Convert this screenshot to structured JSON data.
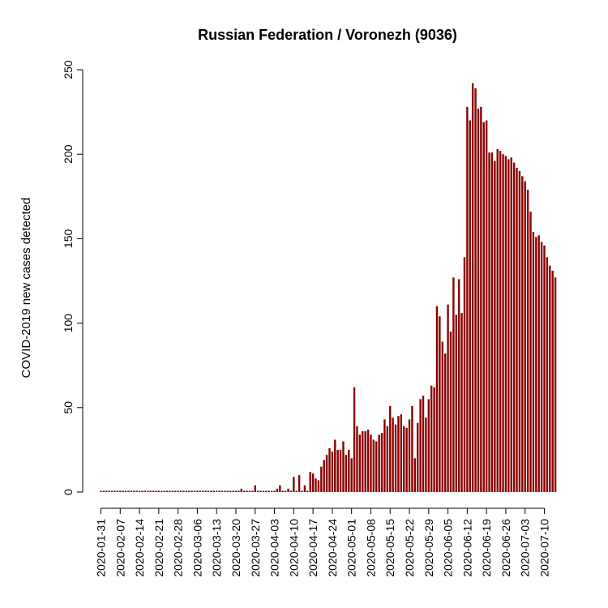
{
  "chart_data": {
    "type": "bar",
    "title": "Russian Federation / Voronezh (9036)",
    "xlabel": "",
    "ylabel": "COVID-2019 new cases detected",
    "ylim": [
      0,
      250
    ],
    "y_ticks": [
      0,
      50,
      100,
      150,
      200,
      250
    ],
    "x_start": "2020-01-31",
    "x_tick_labels": [
      "2020-01-31",
      "2020-02-07",
      "2020-02-14",
      "2020-02-21",
      "2020-02-28",
      "2020-03-06",
      "2020-03-13",
      "2020-03-20",
      "2020-03-27",
      "2020-04-03",
      "2020-04-10",
      "2020-04-17",
      "2020-04-24",
      "2020-05-01",
      "2020-05-08",
      "2020-05-15",
      "2020-05-22",
      "2020-05-29",
      "2020-06-05",
      "2020-06-12",
      "2020-06-19",
      "2020-06-26",
      "2020-07-03",
      "2020-07-10"
    ],
    "bar_color": "#8b0000",
    "values": [
      0,
      0,
      0,
      0,
      0,
      0,
      0,
      0,
      0,
      0,
      0,
      0,
      0,
      0,
      0,
      0,
      0,
      0,
      0,
      0,
      0,
      0,
      0,
      0,
      0,
      0,
      0,
      0,
      0,
      0,
      0,
      0,
      0,
      0,
      0,
      0,
      0,
      0,
      0,
      0,
      0,
      0,
      0,
      0,
      0,
      0,
      0,
      0,
      0,
      0,
      0,
      2,
      0,
      0,
      0,
      0,
      4,
      0,
      0,
      0,
      0,
      0,
      0,
      0,
      2,
      4,
      0,
      0,
      2,
      0,
      9,
      0,
      10,
      0,
      4,
      0,
      12,
      11,
      8,
      7,
      15,
      19,
      22,
      26,
      24,
      31,
      25,
      25,
      30,
      22,
      25,
      20,
      62,
      39,
      34,
      36,
      36,
      37,
      34,
      31,
      30,
      34,
      35,
      43,
      39,
      51,
      44,
      40,
      45,
      46,
      39,
      38,
      43,
      51,
      20,
      41,
      55,
      57,
      44,
      55,
      63,
      62,
      110,
      104,
      89,
      82,
      111,
      95,
      127,
      105,
      126,
      106,
      139,
      228,
      220,
      242,
      239,
      227,
      228,
      219,
      220,
      201,
      201,
      196,
      203,
      202,
      200,
      199,
      197,
      198,
      195,
      192,
      190,
      187,
      184,
      179,
      166,
      154,
      151,
      152,
      148,
      146,
      139,
      134,
      131,
      127
    ]
  }
}
